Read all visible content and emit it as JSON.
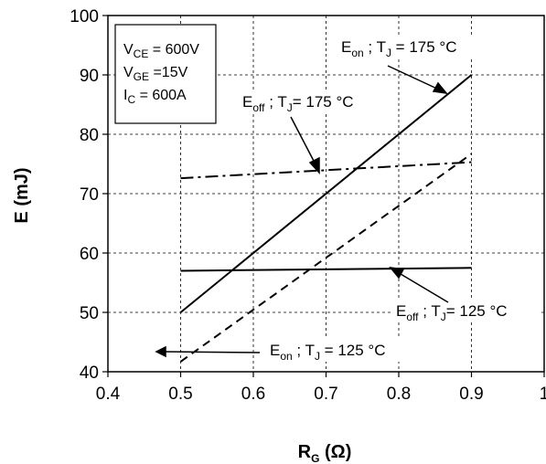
{
  "chart_data": {
    "type": "line",
    "xlabel": "R",
    "xlabel_sub": "G",
    "xlabel_unit": " (Ω)",
    "ylabel": "E (mJ)",
    "xlim": [
      0.4,
      1.0
    ],
    "ylim": [
      40,
      100
    ],
    "xticks": [
      "0.4",
      "0.5",
      "0.6",
      "0.7",
      "0.8",
      "0.9",
      "1"
    ],
    "yticks": [
      "40",
      "50",
      "60",
      "70",
      "80",
      "90",
      "100"
    ],
    "grid": true,
    "conditions": [
      {
        "main": "V",
        "sub": "CE",
        "rest": " = 600V"
      },
      {
        "main": "V",
        "sub": "GE",
        "rest": " =15V"
      },
      {
        "main": "I",
        "sub": "C",
        "rest": " = 600A"
      }
    ],
    "series": [
      {
        "name": "E_on ; T_J = 175 °C",
        "style": "solid",
        "x": [
          0.5,
          0.9
        ],
        "y": [
          50,
          90
        ]
      },
      {
        "name": "E_off ; T_J = 175 °C",
        "style": "dashdot",
        "x": [
          0.5,
          0.9
        ],
        "y": [
          72.6,
          75.3
        ]
      },
      {
        "name": "E_off ; T_J = 125 °C",
        "style": "solid",
        "x": [
          0.5,
          0.9
        ],
        "y": [
          57,
          57.5
        ]
      },
      {
        "name": "E_on ; T_J = 125 °C",
        "style": "dashed",
        "x": [
          0.5,
          0.9
        ],
        "y": [
          41.7,
          76.7
        ]
      }
    ],
    "annotations": [
      {
        "e_main": "E",
        "e_sub": "on",
        "mid": " ; T",
        "t_sub": "J",
        "rest": " = 175 °C"
      },
      {
        "e_main": "E",
        "e_sub": "off",
        "mid": " ; T",
        "t_sub": "J",
        "rest": "= 175 °C"
      },
      {
        "e_main": "E",
        "e_sub": "off",
        "mid": " ; T",
        "t_sub": "J",
        "rest": "= 125 °C"
      },
      {
        "e_main": "E",
        "e_sub": "on",
        "mid": " ; T",
        "t_sub": "J",
        "rest": " = 125 °C"
      }
    ]
  }
}
